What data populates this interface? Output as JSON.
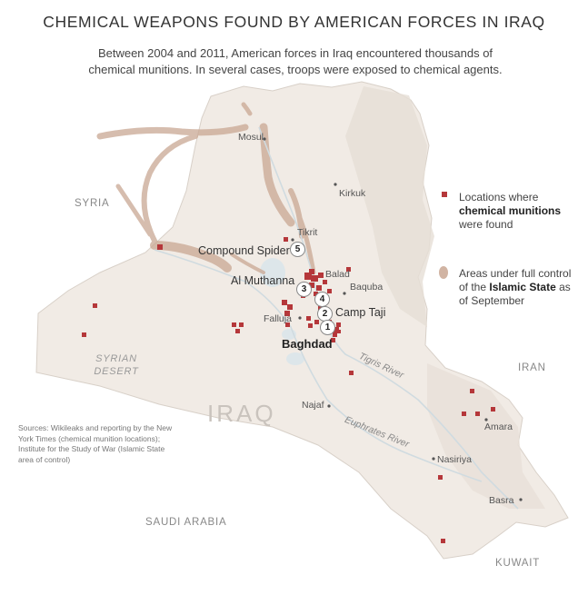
{
  "header": {
    "title": "CHEMICAL WEAPONS FOUND BY AMERICAN FORCES IN IRAQ",
    "subtitle": "Between 2004 and 2011, American forces in Iraq encountered thousands of chemical munitions. In several cases, troops were exposed to chemical agents."
  },
  "colors": {
    "munition": "#b5373a",
    "isis_area": "#c9a793",
    "land": "#f1ebe5",
    "water": "#dde6ea"
  },
  "cities": {
    "mosul": "Mosul",
    "kirkuk": "Kirkuk",
    "tikrit": "Tikrit",
    "balad": "Balad",
    "baquba": "Baquba",
    "falluja": "Falluja",
    "baghdad": "Baghdad",
    "najaf": "Najaf",
    "nasiriya": "Nasiriya",
    "basra": "Basra",
    "amara": "Amara"
  },
  "sites": {
    "compound_spider": "Compound Spider",
    "al_muthanna": "Al Muthanna",
    "camp_taji": "Camp Taji"
  },
  "markers": [
    "1",
    "2",
    "3",
    "4",
    "5"
  ],
  "countries": {
    "syria": "SYRIA",
    "iran": "IRAN",
    "saudi_arabia": "SAUDI ARABIA",
    "kuwait": "KUWAIT",
    "iraq": "IRAQ"
  },
  "regions": {
    "syrian_desert_1": "SYRIAN",
    "syrian_desert_2": "DESERT"
  },
  "rivers": {
    "tigris": "Tigris River",
    "euphrates": "Euphrates River"
  },
  "legend": {
    "munitions_pre": "Locations where",
    "munitions_bold": "chemical munitions",
    "munitions_post": "were found",
    "isis_pre": "Areas under full control of the",
    "isis_bold": "Islamic State",
    "isis_post": "as of September"
  },
  "sources": "Sources: Wikileaks and reporting by the New York Times (chemical munition locations); Institute for the Study of War (Islamic State area of control)"
}
